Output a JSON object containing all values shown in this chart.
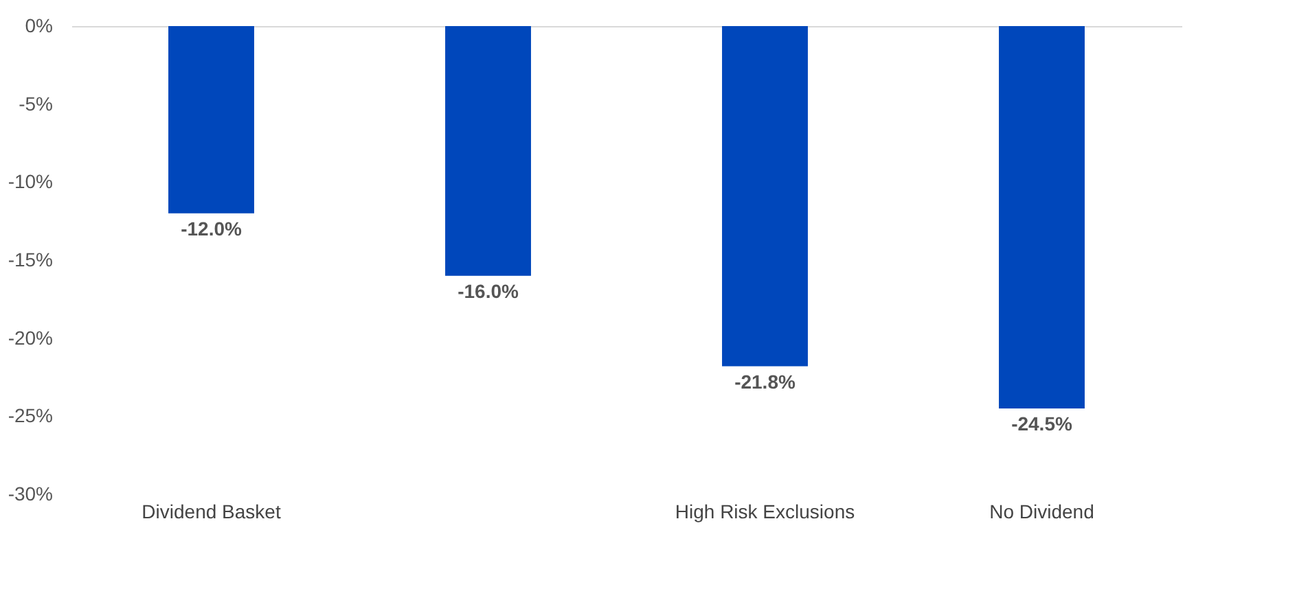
{
  "chart_data": {
    "type": "bar",
    "categories": [
      "Dividend Basket",
      null,
      "High Risk Exclusions",
      "No Dividend"
    ],
    "values": [
      -12.0,
      -16.0,
      -21.8,
      -24.5
    ],
    "color": "#0047bb",
    "value_labels": [
      "-12.0%",
      "-16.0%",
      "-21.8%",
      "-24.5%"
    ],
    "ylim": [
      -30,
      0
    ],
    "yticks": [
      {
        "value": 0,
        "label": "0%"
      },
      {
        "value": -5,
        "label": "-5%"
      },
      {
        "value": -10,
        "label": "-10%"
      },
      {
        "value": -15,
        "label": "-15%"
      },
      {
        "value": -20,
        "label": "-20%"
      },
      {
        "value": -25,
        "label": "-25%"
      },
      {
        "value": -30,
        "label": "-30%"
      }
    ],
    "grid": false
  }
}
